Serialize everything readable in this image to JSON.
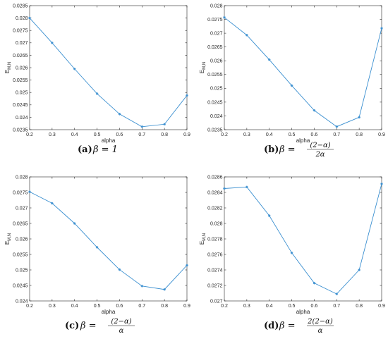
{
  "accent_color": "#3a8fd0",
  "chart_data": [
    {
      "type": "line",
      "xlabel": "alpha",
      "ylabel_main": "E",
      "ylabel_sub": "M,N",
      "x": [
        0.2,
        0.3,
        0.4,
        0.5,
        0.6,
        0.7,
        0.8,
        0.9
      ],
      "values": [
        0.028,
        0.027,
        0.02595,
        0.02495,
        0.02413,
        0.02362,
        0.02372,
        0.02488
      ],
      "xlim": [
        0.2,
        0.9
      ],
      "ylim": [
        0.0235,
        0.0285
      ],
      "xticks": [
        "0.2",
        "0.3",
        "0.4",
        "0.5",
        "0.6",
        "0.7",
        "0.8",
        "0.9"
      ],
      "yticks": [
        "0.0235",
        "0.024",
        "0.0245",
        "0.025",
        "0.0255",
        "0.026",
        "0.0265",
        "0.027",
        "0.0275",
        "0.028",
        "0.0285"
      ],
      "caption": {
        "tag": "(a)",
        "pre": "β = 1",
        "num": "",
        "den": ""
      }
    },
    {
      "type": "line",
      "xlabel": "alpha",
      "ylabel_main": "E",
      "ylabel_sub": "M,N",
      "x": [
        0.2,
        0.3,
        0.4,
        0.5,
        0.6,
        0.7,
        0.8,
        0.9
      ],
      "values": [
        0.02757,
        0.02693,
        0.02604,
        0.0251,
        0.0242,
        0.02361,
        0.02395,
        0.02718
      ],
      "xlim": [
        0.2,
        0.9
      ],
      "ylim": [
        0.0235,
        0.028
      ],
      "xticks": [
        "0.2",
        "0.3",
        "0.4",
        "0.5",
        "0.6",
        "0.7",
        "0.8",
        "0.9"
      ],
      "yticks": [
        "0.0235",
        "0.024",
        "0.0245",
        "0.025",
        "0.0255",
        "0.026",
        "0.0265",
        "0.027",
        "0.0275",
        "0.028"
      ],
      "caption": {
        "tag": "(b)",
        "pre": "β =",
        "num": "(2−α)",
        "den": "2α"
      }
    },
    {
      "type": "line",
      "xlabel": "alpha",
      "ylabel_main": "E",
      "ylabel_sub": "M,N",
      "x": [
        0.2,
        0.3,
        0.4,
        0.5,
        0.6,
        0.7,
        0.8,
        0.9
      ],
      "values": [
        0.02752,
        0.02715,
        0.0265,
        0.02573,
        0.02501,
        0.02448,
        0.02437,
        0.02515
      ],
      "xlim": [
        0.2,
        0.9
      ],
      "ylim": [
        0.024,
        0.028
      ],
      "xticks": [
        "0.2",
        "0.3",
        "0.4",
        "0.5",
        "0.6",
        "0.7",
        "0.8",
        "0.9"
      ],
      "yticks": [
        "0.024",
        "0.0245",
        "0.025",
        "0.0255",
        "0.026",
        "0.0265",
        "0.027",
        "0.0275",
        "0.028"
      ],
      "caption": {
        "tag": "(c)",
        "pre": "β =",
        "num": "(2−α)",
        "den": "α"
      }
    },
    {
      "type": "line",
      "xlabel": "alpha",
      "ylabel_main": "E",
      "ylabel_sub": "M,N",
      "x": [
        0.2,
        0.3,
        0.4,
        0.5,
        0.6,
        0.7,
        0.8,
        0.9
      ],
      "values": [
        0.02845,
        0.02847,
        0.0281,
        0.02762,
        0.02723,
        0.02709,
        0.0274,
        0.02851
      ],
      "xlim": [
        0.2,
        0.9
      ],
      "ylim": [
        0.027,
        0.0286
      ],
      "xticks": [
        "0.2",
        "0.3",
        "0.4",
        "0.5",
        "0.6",
        "0.7",
        "0.8",
        "0.9"
      ],
      "yticks": [
        "0.027",
        "0.0272",
        "0.0274",
        "0.0276",
        "0.0278",
        "0.028",
        "0.0282",
        "0.0284",
        "0.0286"
      ],
      "caption": {
        "tag": "(d)",
        "pre": "β =",
        "num": "2(2−α)",
        "den": "α"
      }
    }
  ]
}
